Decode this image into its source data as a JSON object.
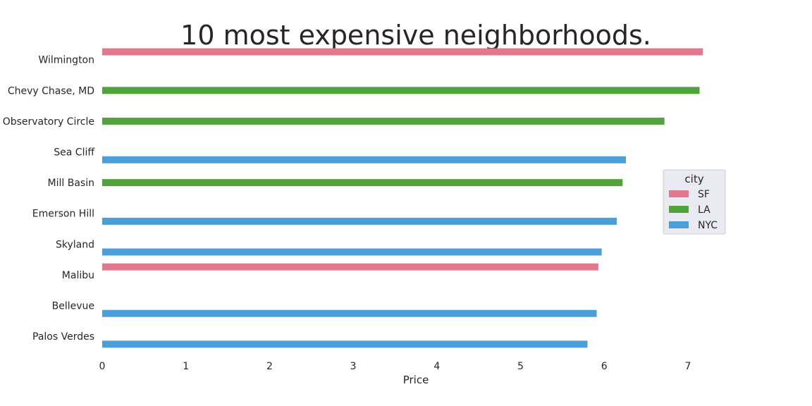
{
  "chart_data": {
    "type": "bar",
    "orientation": "horizontal",
    "title": "10 most expensive neighborhoods.",
    "xlabel": "Price",
    "ylabel": "",
    "xlim": [
      0,
      7.5
    ],
    "xticks": [
      0,
      1,
      2,
      3,
      4,
      5,
      6,
      7
    ],
    "grid": false,
    "legend": {
      "title": "city",
      "placement": "center-right",
      "entries": [
        {
          "name": "SF",
          "color": "#e2788e"
        },
        {
          "name": "LA",
          "color": "#51a43c"
        },
        {
          "name": "NYC",
          "color": "#4b9fd9"
        }
      ]
    },
    "categories": [
      "Wilmington",
      "Chevy Chase, MD",
      "Observatory Circle",
      "Sea Cliff",
      "Mill Basin",
      "Emerson Hill",
      "Skyland",
      "Malibu",
      "Bellevue",
      "Palos Verdes"
    ],
    "series": [
      {
        "name": "SF",
        "values": [
          7.18,
          null,
          null,
          null,
          null,
          null,
          null,
          5.93,
          null,
          null
        ]
      },
      {
        "name": "LA",
        "values": [
          null,
          7.14,
          6.72,
          null,
          6.22,
          null,
          null,
          null,
          null,
          null
        ]
      },
      {
        "name": "NYC",
        "values": [
          null,
          null,
          null,
          6.26,
          null,
          6.15,
          5.97,
          null,
          5.91,
          5.8
        ]
      }
    ]
  }
}
